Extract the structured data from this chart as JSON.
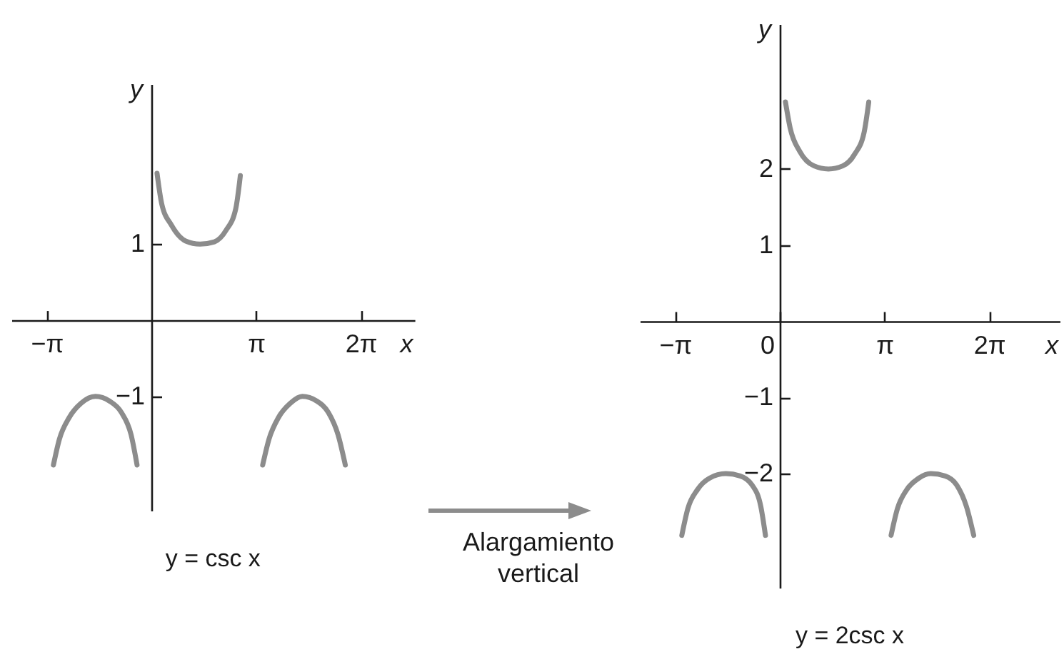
{
  "chart_data": [
    {
      "type": "line",
      "title": "y = csc x",
      "xlabel": "x",
      "ylabel": "y",
      "xlim": [
        -4.2,
        7.9
      ],
      "ylim": [
        -2.5,
        3.1
      ],
      "xticks": [
        {
          "value": -3.1416,
          "label": "−π"
        },
        {
          "value": 3.1416,
          "label": "π"
        },
        {
          "value": 6.2832,
          "label": "2π"
        }
      ],
      "yticks": [
        -1,
        1
      ],
      "series": [
        {
          "color": "#8c8c8c",
          "x": [
            -2.94,
            -2.76,
            -2.47,
            -2.11,
            -1.68,
            -1.26,
            -0.9,
            -0.61,
            -0.43
          ],
          "values": [
            -1.9,
            -1.56,
            -1.28,
            -1.09,
            -1.0,
            -1.06,
            -1.21,
            -1.5,
            -1.9
          ]
        },
        {
          "color": "#8c8c8c",
          "x": [
            0.17,
            0.31,
            0.6,
            1.03,
            1.46,
            1.89,
            2.24,
            2.53,
            2.67
          ],
          "values": [
            1.93,
            1.53,
            1.25,
            1.04,
            1.0,
            1.03,
            1.18,
            1.46,
            1.9
          ]
        },
        {
          "color": "#8c8c8c",
          "x": [
            3.34,
            3.53,
            3.81,
            4.17,
            4.53,
            4.96,
            5.31,
            5.6,
            5.82
          ],
          "values": [
            -1.9,
            -1.56,
            -1.28,
            -1.09,
            -1.0,
            -1.06,
            -1.21,
            -1.5,
            -1.9
          ]
        }
      ]
    },
    {
      "type": "line",
      "title": "y = 2csc x",
      "xlabel": "x",
      "ylabel": "y",
      "xlim": [
        -4.2,
        8.4
      ],
      "ylim": [
        -3.5,
        3.9
      ],
      "xticks": [
        {
          "value": -3.1416,
          "label": "−π"
        },
        0,
        {
          "value": 3.1416,
          "label": "π"
        },
        {
          "value": 6.2832,
          "label": "2π"
        }
      ],
      "yticks": [
        -2,
        -1,
        1,
        2
      ],
      "annotations": [
        "Alargamiento vertical"
      ],
      "series": [
        {
          "color": "#8c8c8c",
          "x": [
            -2.94,
            -2.76,
            -2.47,
            -2.11,
            -1.62,
            -1.19,
            -0.83,
            -0.57,
            -0.43
          ],
          "values": [
            -2.81,
            -2.46,
            -2.21,
            -2.06,
            -2.0,
            -2.03,
            -2.15,
            -2.43,
            -2.81
          ]
        },
        {
          "color": "#8c8c8c",
          "x": [
            0.17,
            0.31,
            0.6,
            1.03,
            1.46,
            1.89,
            2.24,
            2.53,
            2.67
          ],
          "values": [
            2.88,
            2.54,
            2.23,
            2.04,
            2.0,
            2.04,
            2.19,
            2.48,
            2.88
          ]
        },
        {
          "color": "#8c8c8c",
          "x": [
            3.34,
            3.53,
            3.81,
            4.17,
            4.53,
            4.96,
            5.31,
            5.6,
            5.82
          ],
          "values": [
            -2.81,
            -2.46,
            -2.21,
            -2.06,
            -2.0,
            -2.03,
            -2.15,
            -2.43,
            -2.81
          ]
        }
      ]
    }
  ]
}
